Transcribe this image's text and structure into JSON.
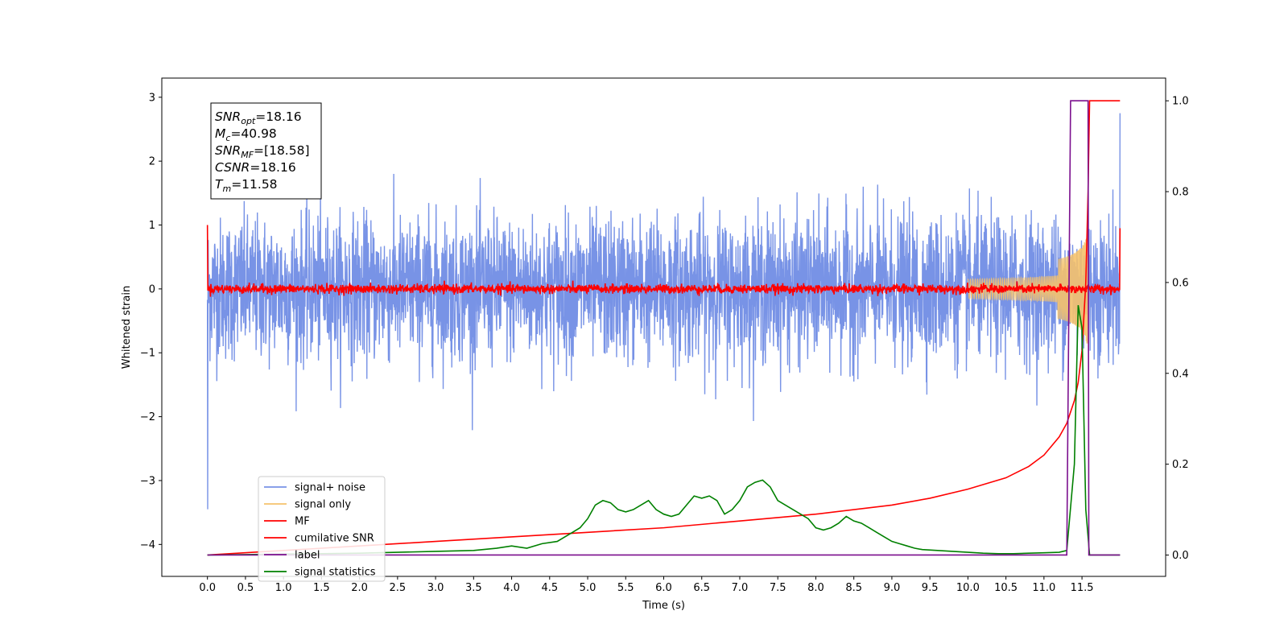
{
  "chart_data": {
    "type": "line",
    "xlabel": "Time (s)",
    "ylabel_left": "Whitened strain",
    "ylabel_right": "",
    "xlim": [
      -0.6,
      12.6
    ],
    "ylim_left": [
      -4.5,
      3.3
    ],
    "ylim_right": [
      -0.047,
      1.05
    ],
    "x_ticks": [
      "0.0",
      "0.5",
      "1.0",
      "1.5",
      "2.0",
      "2.5",
      "3.0",
      "3.5",
      "4.0",
      "4.5",
      "5.0",
      "5.5",
      "6.0",
      "6.5",
      "7.0",
      "7.5",
      "8.0",
      "8.5",
      "9.0",
      "9.5",
      "10.0",
      "10.5",
      "11.0",
      "11.5"
    ],
    "y_ticks_left": [
      3,
      2,
      1,
      0,
      -1,
      -2,
      -3,
      -4
    ],
    "y_tick_labels_left": [
      "3",
      "2",
      "1",
      "0",
      "−1",
      "−2",
      "−3",
      "−4"
    ],
    "y_ticks_right": [
      1.0,
      0.8,
      0.6,
      0.4,
      0.2,
      0.0
    ],
    "y_tick_labels_right": [
      "1.0",
      "0.8",
      "0.6",
      "0.4",
      "0.2",
      "0.0"
    ],
    "grid": false,
    "legend_position": "lower-left",
    "annotation": {
      "lines": [
        {
          "var": "SNR",
          "sub": "opt",
          "value": "=18.16"
        },
        {
          "var": "M",
          "sub": "c",
          "value": "=40.98"
        },
        {
          "var": "SNR",
          "sub": "MF",
          "value": "=[18.58]"
        },
        {
          "var": "CSNR",
          "sub": "",
          "value": "=18.16"
        },
        {
          "var": "T",
          "sub": "m",
          "value": "=11.58"
        }
      ]
    },
    "series": [
      {
        "name": "signal+ noise",
        "color": "#7893e6",
        "axis": "left",
        "kind": "noise",
        "description_values": {
          "x_start": 0.0,
          "x_end": 12.0,
          "typical_range": [
            -1.4,
            1.5
          ],
          "max": 2.75,
          "min": -3.45
        }
      },
      {
        "name": "signal only",
        "color": "#f5c26b",
        "axis": "left",
        "kind": "chirp",
        "x_start": 10.0,
        "x_end": 11.58,
        "peak_amplitude": 1.0
      },
      {
        "name": "MF",
        "color": "#ff0000",
        "axis": "left",
        "kind": "mf",
        "x_start": 0.0,
        "x_end": 12.0,
        "edge_value": 1.0,
        "noise_amplitude": 0.08
      },
      {
        "name": "cumilative SNR",
        "color": "#ff0000",
        "axis": "right",
        "x": [
          0.0,
          1.0,
          2.0,
          3.0,
          4.0,
          5.0,
          6.0,
          7.0,
          8.0,
          9.0,
          9.5,
          10.0,
          10.5,
          10.8,
          11.0,
          11.2,
          11.3,
          11.4,
          11.45,
          11.5,
          11.55,
          11.58,
          11.6,
          12.0
        ],
        "y": [
          0.0,
          0.01,
          0.02,
          0.03,
          0.04,
          0.05,
          0.06,
          0.075,
          0.09,
          0.11,
          0.125,
          0.145,
          0.17,
          0.195,
          0.22,
          0.26,
          0.29,
          0.34,
          0.38,
          0.45,
          0.6,
          0.8,
          1.0,
          1.0
        ]
      },
      {
        "name": "label",
        "color": "#7b0f8e",
        "axis": "right",
        "x": [
          0.0,
          11.3,
          11.35,
          11.58,
          11.59,
          12.0
        ],
        "y": [
          0.0,
          0.0,
          1.0,
          1.0,
          0.0,
          0.0
        ]
      },
      {
        "name": "signal statistics",
        "color": "#008000",
        "axis": "right",
        "x": [
          0.0,
          0.5,
          1.0,
          1.5,
          2.0,
          2.5,
          3.0,
          3.5,
          3.8,
          4.0,
          4.2,
          4.4,
          4.6,
          4.8,
          4.9,
          5.0,
          5.1,
          5.2,
          5.3,
          5.4,
          5.5,
          5.6,
          5.7,
          5.8,
          5.9,
          6.0,
          6.1,
          6.2,
          6.3,
          6.4,
          6.5,
          6.6,
          6.7,
          6.8,
          6.9,
          7.0,
          7.1,
          7.2,
          7.3,
          7.4,
          7.5,
          7.6,
          7.7,
          7.8,
          7.9,
          8.0,
          8.1,
          8.2,
          8.3,
          8.4,
          8.5,
          8.6,
          8.7,
          8.8,
          8.9,
          9.0,
          9.1,
          9.2,
          9.3,
          9.4,
          9.6,
          9.8,
          10.0,
          10.2,
          10.4,
          10.6,
          10.8,
          11.0,
          11.2,
          11.3,
          11.4,
          11.45,
          11.5,
          11.55,
          11.6,
          11.7,
          12.0
        ],
        "y": [
          0.0,
          0.001,
          0.002,
          0.003,
          0.004,
          0.006,
          0.008,
          0.01,
          0.015,
          0.02,
          0.015,
          0.025,
          0.03,
          0.05,
          0.06,
          0.08,
          0.11,
          0.12,
          0.115,
          0.1,
          0.095,
          0.1,
          0.11,
          0.12,
          0.1,
          0.09,
          0.085,
          0.09,
          0.11,
          0.13,
          0.125,
          0.13,
          0.12,
          0.09,
          0.1,
          0.12,
          0.15,
          0.16,
          0.165,
          0.15,
          0.12,
          0.11,
          0.1,
          0.09,
          0.08,
          0.06,
          0.055,
          0.06,
          0.07,
          0.085,
          0.075,
          0.07,
          0.06,
          0.05,
          0.04,
          0.03,
          0.025,
          0.02,
          0.015,
          0.012,
          0.01,
          0.008,
          0.006,
          0.004,
          0.003,
          0.003,
          0.004,
          0.005,
          0.006,
          0.01,
          0.2,
          0.55,
          0.5,
          0.1,
          0.0,
          0.0,
          0.0
        ]
      }
    ]
  }
}
